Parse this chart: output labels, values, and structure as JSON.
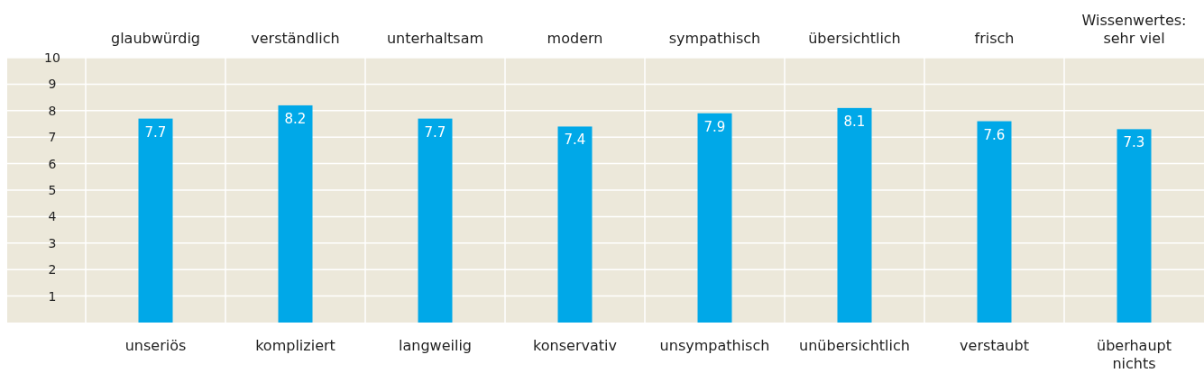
{
  "chart_data": {
    "type": "bar",
    "categories": [
      "glaubwürdig",
      "verständlich",
      "unterhaltsam",
      "modern",
      "sympathisch",
      "übersichtlich",
      "frisch",
      "Wissenwertes: sehr viel"
    ],
    "values": [
      7.7,
      8.2,
      7.7,
      7.4,
      7.9,
      8.1,
      7.6,
      7.3
    ],
    "color": "#00a8e8",
    "data_labels": true,
    "ylim": [
      0,
      10
    ],
    "yticks": [
      1,
      2,
      3,
      4,
      5,
      6,
      7,
      8,
      9,
      10
    ],
    "grid": true,
    "annotations": [
      "unseriös",
      "kompliziert",
      "langweilig",
      "konservativ",
      "unsympathisch",
      "unübersichtlich",
      "verstaubt",
      "überhaupt nichts"
    ]
  }
}
